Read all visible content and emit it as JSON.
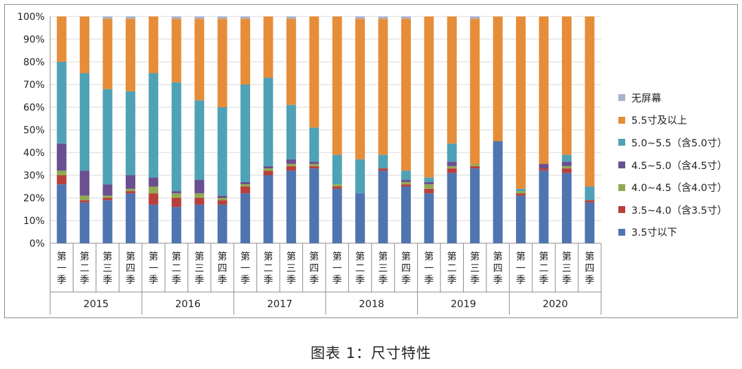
{
  "caption": "图表 1：尺寸特性",
  "colors": {
    "lt35": "#4f75b0",
    "r35_40": "#b8403c",
    "r40_45": "#92aa51",
    "r45_50": "#6a5090",
    "r50_55": "#4fa2b6",
    "ge55": "#e68d3a",
    "none": "#a9b3c9"
  },
  "chart_data": {
    "type": "bar",
    "stacked": true,
    "ylim": [
      0,
      100
    ],
    "y_ticks": [
      "0%",
      "10%",
      "20%",
      "30%",
      "40%",
      "50%",
      "60%",
      "70%",
      "80%",
      "90%",
      "100%"
    ],
    "grid": true,
    "legend_position": "right",
    "years": [
      "2015",
      "2016",
      "2017",
      "2018",
      "2019",
      "2020"
    ],
    "quarters": [
      "第一季",
      "第二季",
      "第三季",
      "第四季"
    ],
    "categories": [
      "2015 第一季",
      "2015 第二季",
      "2015 第三季",
      "2015 第四季",
      "2016 第一季",
      "2016 第二季",
      "2016 第三季",
      "2016 第四季",
      "2017 第一季",
      "2017 第二季",
      "2017 第三季",
      "2017 第四季",
      "2018 第一季",
      "2018 第二季",
      "2018 第三季",
      "2018 第四季",
      "2019 第一季",
      "2019 第二季",
      "2019 第三季",
      "2019 第四季",
      "2020 第一季",
      "2020 第二季",
      "2020 第三季",
      "2020 第四季"
    ],
    "series": [
      {
        "name": "3.5寸以下",
        "color_key": "lt35",
        "values": [
          26,
          18,
          19,
          22,
          17,
          16,
          17,
          17,
          22,
          30,
          32,
          33,
          24,
          22,
          32,
          25,
          22,
          31,
          33,
          45,
          21,
          32,
          31,
          18
        ]
      },
      {
        "name": "3.5~4.0（含3.5寸）",
        "color_key": "r35_40",
        "values": [
          4,
          1,
          1,
          1,
          5,
          4,
          3,
          2,
          3,
          2,
          2,
          1,
          1,
          0,
          1,
          1,
          2,
          2,
          1,
          0,
          1,
          1,
          2,
          1
        ]
      },
      {
        "name": "4.0~4.5（含4.0寸）",
        "color_key": "r40_45",
        "values": [
          2,
          2,
          1,
          1,
          3,
          2,
          2,
          1,
          1,
          1,
          1,
          1,
          1,
          0,
          0,
          1,
          2,
          1,
          1,
          0,
          1,
          0,
          1,
          0
        ]
      },
      {
        "name": "4.5~5.0（含4.5寸）",
        "color_key": "r45_50",
        "values": [
          12,
          11,
          5,
          6,
          4,
          1,
          6,
          1,
          1,
          1,
          2,
          1,
          0,
          0,
          0,
          1,
          1,
          2,
          0,
          0,
          0,
          2,
          2,
          0
        ]
      },
      {
        "name": "5.0~5.5（含5.0寸）",
        "color_key": "r50_55",
        "values": [
          36,
          43,
          42,
          37,
          46,
          48,
          35,
          39,
          43,
          39,
          24,
          15,
          13,
          15,
          6,
          4,
          2,
          8,
          0,
          0,
          1,
          0,
          3,
          6
        ]
      },
      {
        "name": "5.5寸及以上",
        "color_key": "ge55",
        "values": [
          20,
          25,
          31,
          32,
          25,
          28,
          36,
          39,
          29,
          27,
          38,
          49,
          61,
          62,
          60,
          67,
          71,
          56,
          64,
          55,
          76,
          65,
          61,
          75
        ]
      },
      {
        "name": "无屏幕",
        "color_key": "none",
        "values": [
          0,
          0,
          1,
          1,
          0,
          1,
          1,
          1,
          1,
          0,
          1,
          0,
          0,
          1,
          1,
          1,
          0,
          0,
          1,
          0,
          0,
          0,
          0,
          0
        ]
      }
    ],
    "legend_order": [
      "无屏幕",
      "5.5寸及以上",
      "5.0~5.5（含5.0寸）",
      "4.5~5.0（含4.5寸）",
      "4.0~4.5（含4.0寸）",
      "3.5~4.0（含3.5寸）",
      "3.5寸以下"
    ]
  }
}
